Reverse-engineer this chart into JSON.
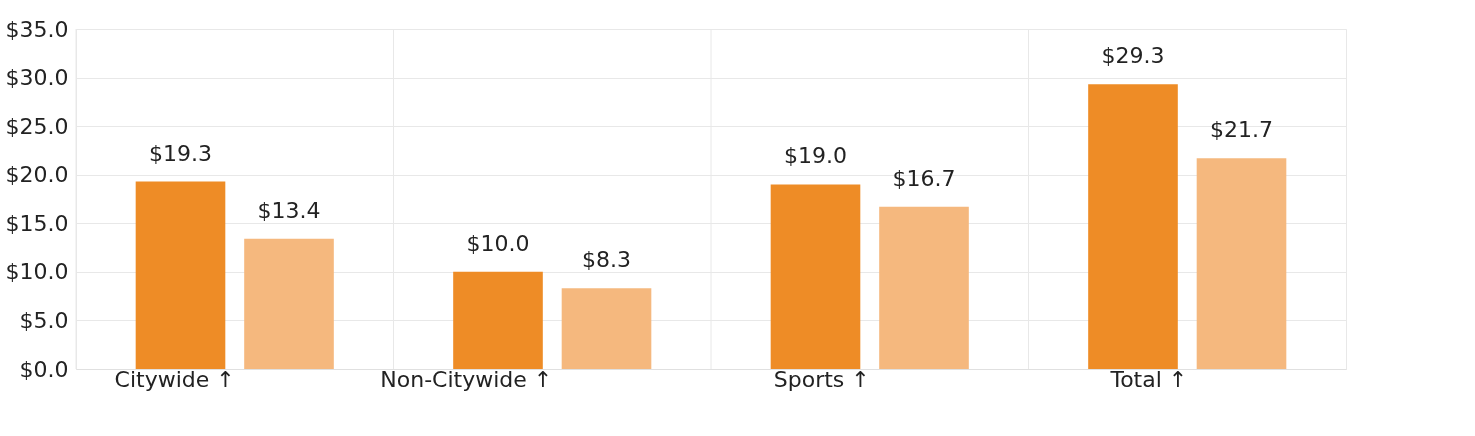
{
  "chart_data": {
    "type": "bar",
    "categories": [
      "Citywide ↑",
      "Non-Citywide ↑",
      "Sports ↑",
      "Total ↑"
    ],
    "series": [
      {
        "color": "#ee8c26",
        "values": [
          19.3,
          10.0,
          19.0,
          29.3
        ]
      },
      {
        "color": "#f5b87e",
        "values": [
          13.4,
          8.3,
          16.7,
          21.7
        ]
      }
    ],
    "ylim": [
      0,
      35
    ],
    "yticks": [
      {
        "value": 0,
        "label": "$0.0"
      },
      {
        "value": 5,
        "label": "$5.0"
      },
      {
        "value": 10,
        "label": "$10.0"
      },
      {
        "value": 15,
        "label": "$15.0"
      },
      {
        "value": 20,
        "label": "$20.0"
      },
      {
        "value": 25,
        "label": "$25.0"
      },
      {
        "value": 30,
        "label": "$30.0"
      },
      {
        "value": 35,
        "label": "$35.0"
      }
    ],
    "grid": true,
    "value_labels": [
      [
        "$19.3",
        "$10.0",
        "$19.0",
        "$29.3"
      ],
      [
        "$13.4",
        "$8.3",
        "$16.7",
        "$21.7"
      ]
    ]
  }
}
